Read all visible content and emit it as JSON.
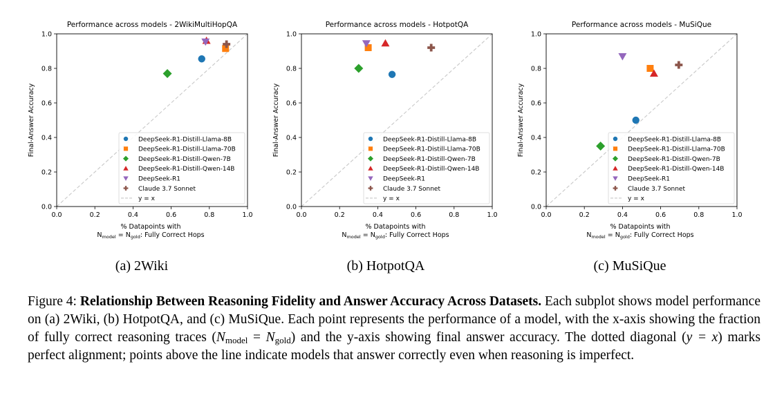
{
  "chart_data": [
    {
      "type": "scatter",
      "title": "Performance across models - 2WikiMultiHopQA",
      "xlabel_line1": "% Datapoints with",
      "xlabel_line2": "N_model = N_gold: Fully Correct Hops",
      "ylabel": "Final-Answer Accuracy",
      "xlim": [
        0,
        1
      ],
      "ylim": [
        0,
        1
      ],
      "ticks": [
        "0.0",
        "0.2",
        "0.4",
        "0.6",
        "0.8",
        "1.0"
      ],
      "legend_position": "bottom-right",
      "series": [
        {
          "name": "DeepSeek-R1-Distill-Llama-8B",
          "marker": "circle",
          "color": "#1f77b4",
          "x": 0.76,
          "y": 0.855
        },
        {
          "name": "DeepSeek-R1-Distill-Llama-70B",
          "marker": "square",
          "color": "#ff7f0e",
          "x": 0.885,
          "y": 0.915
        },
        {
          "name": "DeepSeek-R1-Distill-Qwen-7B",
          "marker": "diamond",
          "color": "#2ca02c",
          "x": 0.58,
          "y": 0.77
        },
        {
          "name": "DeepSeek-R1-Distill-Qwen-14B",
          "marker": "triangle-up",
          "color": "#d62728",
          "x": 0.785,
          "y": 0.96
        },
        {
          "name": "DeepSeek-R1",
          "marker": "triangle-down",
          "color": "#9467bd",
          "x": 0.78,
          "y": 0.955
        },
        {
          "name": "Claude 3.7 Sonnet",
          "marker": "plus",
          "color": "#8c564b",
          "x": 0.89,
          "y": 0.94
        }
      ],
      "reference_line": "y = x"
    },
    {
      "type": "scatter",
      "title": "Performance across models - HotpotQA",
      "xlabel_line1": "% Datapoints with",
      "xlabel_line2": "N_model = N_gold: Fully Correct Hops",
      "ylabel": "Final-Answer Accuracy",
      "xlim": [
        0,
        1
      ],
      "ylim": [
        0,
        1
      ],
      "ticks": [
        "0.0",
        "0.2",
        "0.4",
        "0.6",
        "0.8",
        "1.0"
      ],
      "legend_position": "bottom-right",
      "series": [
        {
          "name": "DeepSeek-R1-Distill-Llama-8B",
          "marker": "circle",
          "color": "#1f77b4",
          "x": 0.475,
          "y": 0.765
        },
        {
          "name": "DeepSeek-R1-Distill-Llama-70B",
          "marker": "square",
          "color": "#ff7f0e",
          "x": 0.35,
          "y": 0.92
        },
        {
          "name": "DeepSeek-R1-Distill-Qwen-7B",
          "marker": "diamond",
          "color": "#2ca02c",
          "x": 0.3,
          "y": 0.8
        },
        {
          "name": "DeepSeek-R1-Distill-Qwen-14B",
          "marker": "triangle-up",
          "color": "#d62728",
          "x": 0.44,
          "y": 0.945
        },
        {
          "name": "DeepSeek-R1",
          "marker": "triangle-down",
          "color": "#9467bd",
          "x": 0.34,
          "y": 0.945
        },
        {
          "name": "Claude 3.7 Sonnet",
          "marker": "plus",
          "color": "#8c564b",
          "x": 0.68,
          "y": 0.92
        }
      ],
      "reference_line": "y = x"
    },
    {
      "type": "scatter",
      "title": "Performance across models - MuSiQue",
      "xlabel_line1": "% Datapoints with",
      "xlabel_line2": "N_model = N_gold: Fully Correct Hops",
      "ylabel": "Final-Answer Accuracy",
      "xlim": [
        0,
        1
      ],
      "ylim": [
        0,
        1
      ],
      "ticks": [
        "0.0",
        "0.2",
        "0.4",
        "0.6",
        "0.8",
        "1.0"
      ],
      "legend_position": "bottom-right",
      "series": [
        {
          "name": "DeepSeek-R1-Distill-Llama-8B",
          "marker": "circle",
          "color": "#1f77b4",
          "x": 0.47,
          "y": 0.5
        },
        {
          "name": "DeepSeek-R1-Distill-Llama-70B",
          "marker": "square",
          "color": "#ff7f0e",
          "x": 0.545,
          "y": 0.8
        },
        {
          "name": "DeepSeek-R1-Distill-Qwen-7B",
          "marker": "diamond",
          "color": "#2ca02c",
          "x": 0.285,
          "y": 0.35
        },
        {
          "name": "DeepSeek-R1-Distill-Qwen-14B",
          "marker": "triangle-up",
          "color": "#d62728",
          "x": 0.565,
          "y": 0.77
        },
        {
          "name": "DeepSeek-R1",
          "marker": "triangle-down",
          "color": "#9467bd",
          "x": 0.4,
          "y": 0.87
        },
        {
          "name": "Claude 3.7 Sonnet",
          "marker": "plus",
          "color": "#8c564b",
          "x": 0.695,
          "y": 0.82
        }
      ],
      "reference_line": "y = x"
    }
  ],
  "subcaptions": [
    "(a) 2Wiki",
    "(b) HotpotQA",
    "(c) MuSiQue"
  ],
  "caption": {
    "label": "Figure 4:",
    "bold_title": "Relationship Between Reasoning Fidelity and Answer Accuracy Across Datasets.",
    "text_1": "Each subplot shows model performance on (a) 2Wiki, (b) HotpotQA, and (c) MuSiQue. Each point represents the performance of a model, with the x-axis showing the fraction of fully correct reasoning traces (",
    "eq_n": "N",
    "eq_model": "model",
    "eq_equals": " = ",
    "eq_gold": "gold",
    "text_2": ") and the y-axis showing final answer accuracy. The dotted diagonal (",
    "eq_diag": "y = x",
    "text_3": ") marks perfect alignment; points above the line indicate models that answer correctly even when reasoning is imperfect."
  }
}
